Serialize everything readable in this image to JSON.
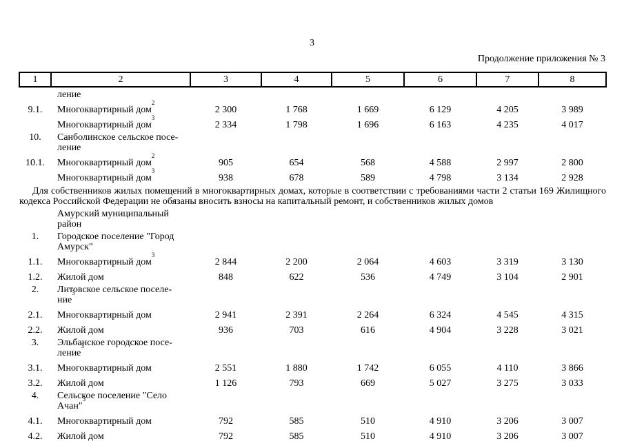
{
  "page": {
    "number": "3",
    "continuation_note": "Продолжение приложения № 3"
  },
  "table": {
    "header": [
      "1",
      "2",
      "3",
      "4",
      "5",
      "6",
      "7",
      "8"
    ],
    "rows": [
      {
        "type": "section",
        "num": "",
        "lines": [
          "ление"
        ],
        "sup": ""
      },
      {
        "type": "data",
        "num": "9.1.",
        "label": "Многоквартирный дом",
        "sup": "2",
        "values": [
          "2 300",
          "1 768",
          "1 669",
          "6 129",
          "4 205",
          "3 989"
        ]
      },
      {
        "type": "data",
        "num": "",
        "label": "Многоквартирный дом",
        "sup": "3",
        "values": [
          "2 334",
          "1 798",
          "1 696",
          "6 163",
          "4 235",
          "4 017"
        ]
      },
      {
        "type": "section",
        "num": "10.",
        "lines": [
          "Санболинское сельское посе-",
          "ление"
        ],
        "sup": ""
      },
      {
        "type": "data",
        "num": "10.1.",
        "label": "Многоквартирный дом",
        "sup": "2",
        "values": [
          "905",
          "654",
          "568",
          "4 588",
          "2 997",
          "2 800"
        ]
      },
      {
        "type": "data",
        "num": "",
        "label": "Многоквартирный дом",
        "sup": "3",
        "values": [
          "938",
          "678",
          "589",
          "4 798",
          "3 134",
          "2 928"
        ]
      },
      {
        "type": "paragraph",
        "text": "Для собственников жилых помещений в многоквартирных домах, которые в соответствии с требованиями части 2 статьи 169 Жилищного кодекса Российской Федерации не обязаны вносить взносы на капитальный ремонт, и собственников жилых домов"
      },
      {
        "type": "section",
        "num": "",
        "lines": [
          "Амурский муниципальный",
          "район"
        ],
        "sup": ""
      },
      {
        "type": "section",
        "num": "1.",
        "lines": [
          "Городское поселение \"Город",
          "Амурск\""
        ],
        "sup": ""
      },
      {
        "type": "data",
        "num": "1.1.",
        "label": "Многоквартирный дом",
        "sup": "3",
        "values": [
          "2 844",
          "2 200",
          "2 064",
          "4 603",
          "3 319",
          "3 130"
        ]
      },
      {
        "type": "data",
        "num": "1.2.",
        "label": "Жилой дом",
        "sup": "",
        "values": [
          "848",
          "622",
          "536",
          "4 749",
          "3 104",
          "2 901"
        ]
      },
      {
        "type": "section",
        "num": "2.",
        "lines": [
          "Литовское сельское поселе-",
          "ние"
        ],
        "sup": "3"
      },
      {
        "type": "data",
        "num": "2.1.",
        "label": "Многоквартирный дом",
        "sup": "",
        "values": [
          "2 941",
          "2 391",
          "2 264",
          "6 324",
          "4 545",
          "4 315"
        ]
      },
      {
        "type": "data",
        "num": "2.2.",
        "label": "Жилой дом",
        "sup": "",
        "values": [
          "936",
          "703",
          "616",
          "4 904",
          "3 228",
          "3 021"
        ]
      },
      {
        "type": "section",
        "num": "3.",
        "lines": [
          "Эльбанское городское посе-",
          "ление"
        ],
        "sup": "3"
      },
      {
        "type": "data",
        "num": "3.1.",
        "label": "Многоквартирный дом",
        "sup": "",
        "values": [
          "2 551",
          "1 880",
          "1 742",
          "6 055",
          "4 110",
          "3 866"
        ]
      },
      {
        "type": "data",
        "num": "3.2.",
        "label": "Жилой дом",
        "sup": "",
        "values": [
          "1 126",
          "793",
          "669",
          "5 027",
          "3 275",
          "3 033"
        ]
      },
      {
        "type": "section",
        "num": "4.",
        "lines": [
          "Сельское поселение \"Село",
          "Ачан\""
        ],
        "sup": "3"
      },
      {
        "type": "data",
        "num": "4.1.",
        "label": "Многоквартирный дом",
        "sup": "",
        "values": [
          "792",
          "585",
          "510",
          "4 910",
          "3 206",
          "3 007"
        ]
      },
      {
        "type": "data",
        "num": "4.2.",
        "label": "Жилой дом",
        "sup": "",
        "values": [
          "792",
          "585",
          "510",
          "4 910",
          "3 206",
          "3 007"
        ]
      }
    ]
  }
}
